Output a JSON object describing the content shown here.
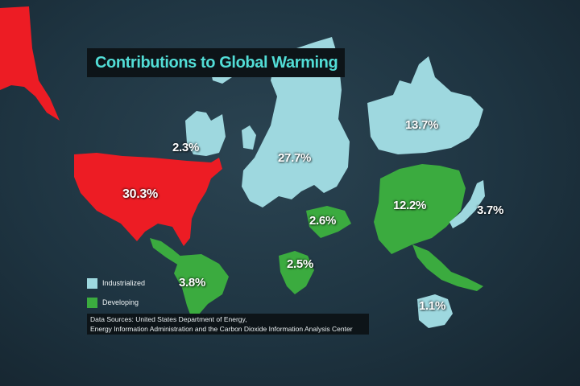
{
  "title": "Contributions to Global Warming",
  "colors": {
    "industrialized": "#9ed8df",
    "developing": "#3bab3f",
    "usa": "#ed1c24",
    "background": "#1e3441",
    "title_text": "#52ddd6"
  },
  "legend": {
    "items": [
      {
        "label": "Industrialized",
        "color": "#9ed8df"
      },
      {
        "label": "Developing",
        "color": "#3bab3f"
      }
    ]
  },
  "regions": [
    {
      "name": "United States",
      "value": "30.3%",
      "group": "usa"
    },
    {
      "name": "Canada",
      "value": "2.3%",
      "group": "industrialized"
    },
    {
      "name": "Europe",
      "value": "27.7%",
      "group": "industrialized"
    },
    {
      "name": "Russia",
      "value": "13.7%",
      "group": "industrialized"
    },
    {
      "name": "China",
      "value": "12.2%",
      "group": "developing"
    },
    {
      "name": "Japan",
      "value": "3.7%",
      "group": "industrialized"
    },
    {
      "name": "Middle East",
      "value": "2.6%",
      "group": "developing"
    },
    {
      "name": "Africa",
      "value": "2.5%",
      "group": "developing"
    },
    {
      "name": "South America",
      "value": "3.8%",
      "group": "developing"
    },
    {
      "name": "Australia",
      "value": "1.1%",
      "group": "industrialized"
    }
  ],
  "source": {
    "line1": "Data Sources: United States Department  of Energy,",
    "line2": "Energy Information Administration and the Carbon Dioxide Information Analysis Center"
  }
}
